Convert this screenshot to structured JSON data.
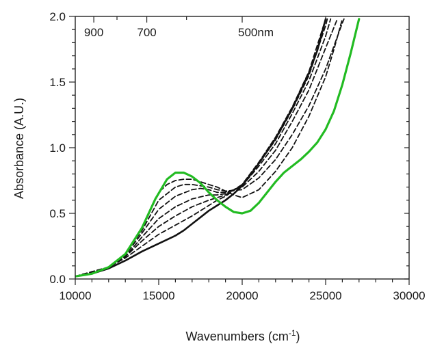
{
  "chart_data": {
    "type": "line",
    "title": "",
    "xlabel": "Wavenumbers (cm",
    "xlabel_sup": "-1",
    "xlabel_end": ")",
    "ylabel": "Absorbance (A.U.)",
    "xlim": [
      10000,
      30000
    ],
    "ylim": [
      0.0,
      2.0
    ],
    "x_ticks": [
      10000,
      15000,
      20000,
      25000,
      30000
    ],
    "x_tick_labels": [
      "10000",
      "15000",
      "20000",
      "25000",
      "30000"
    ],
    "y_ticks": [
      0.0,
      0.5,
      1.0,
      1.5,
      2.0
    ],
    "y_tick_labels": [
      "0.0",
      "0.5",
      "1.0",
      "1.5",
      "2.0"
    ],
    "top_wavelength_labels": [
      {
        "text": "900",
        "x": 11111
      },
      {
        "text": "700",
        "x": 14286
      },
      {
        "text": "500nm",
        "x": 20000
      }
    ],
    "grid": false,
    "colors": {
      "green": "#22bb22",
      "black": "#111111",
      "dashed": "#111111"
    },
    "series": [
      {
        "style": "solid",
        "color": "#111111",
        "points": [
          [
            10000,
            0.02
          ],
          [
            11000,
            0.04
          ],
          [
            12000,
            0.08
          ],
          [
            13000,
            0.14
          ],
          [
            14000,
            0.21
          ],
          [
            15000,
            0.27
          ],
          [
            16000,
            0.33
          ],
          [
            16500,
            0.37
          ],
          [
            17000,
            0.42
          ],
          [
            17500,
            0.47
          ],
          [
            18000,
            0.52
          ],
          [
            18500,
            0.56
          ],
          [
            19000,
            0.6
          ],
          [
            19500,
            0.65
          ],
          [
            20000,
            0.71
          ],
          [
            21000,
            0.88
          ],
          [
            22000,
            1.07
          ],
          [
            23000,
            1.3
          ],
          [
            24000,
            1.57
          ],
          [
            24500,
            1.74
          ],
          [
            25000,
            1.98
          ]
        ]
      },
      {
        "style": "solid",
        "color": "#22bb22",
        "points": [
          [
            10000,
            0.02
          ],
          [
            11000,
            0.04
          ],
          [
            12000,
            0.09
          ],
          [
            13000,
            0.19
          ],
          [
            14000,
            0.39
          ],
          [
            14800,
            0.61
          ],
          [
            15500,
            0.76
          ],
          [
            16000,
            0.81
          ],
          [
            16500,
            0.81
          ],
          [
            17000,
            0.78
          ],
          [
            17500,
            0.73
          ],
          [
            18000,
            0.66
          ],
          [
            18500,
            0.6
          ],
          [
            19000,
            0.55
          ],
          [
            19500,
            0.51
          ],
          [
            20000,
            0.5
          ],
          [
            20500,
            0.52
          ],
          [
            21000,
            0.58
          ],
          [
            21500,
            0.66
          ],
          [
            22000,
            0.74
          ],
          [
            22500,
            0.81
          ],
          [
            23000,
            0.86
          ],
          [
            23500,
            0.91
          ],
          [
            24000,
            0.97
          ],
          [
            24500,
            1.04
          ],
          [
            25000,
            1.14
          ],
          [
            25500,
            1.28
          ],
          [
            26000,
            1.48
          ],
          [
            26500,
            1.72
          ],
          [
            27000,
            1.98
          ]
        ]
      },
      {
        "style": "dashed",
        "color": "#111111",
        "points": [
          [
            10000,
            0.02
          ],
          [
            12000,
            0.09
          ],
          [
            13000,
            0.16
          ],
          [
            14000,
            0.25
          ],
          [
            15000,
            0.34
          ],
          [
            16000,
            0.41
          ],
          [
            17000,
            0.48
          ],
          [
            18000,
            0.56
          ],
          [
            18500,
            0.6
          ],
          [
            19000,
            0.63
          ],
          [
            20000,
            0.72
          ],
          [
            21000,
            0.89
          ],
          [
            22000,
            1.08
          ],
          [
            23000,
            1.31
          ],
          [
            24000,
            1.58
          ],
          [
            25000,
            1.98
          ]
        ]
      },
      {
        "style": "dashed",
        "color": "#111111",
        "points": [
          [
            10000,
            0.02
          ],
          [
            12000,
            0.09
          ],
          [
            13000,
            0.17
          ],
          [
            14000,
            0.29
          ],
          [
            15000,
            0.4
          ],
          [
            16000,
            0.48
          ],
          [
            17000,
            0.55
          ],
          [
            18000,
            0.6
          ],
          [
            18500,
            0.62
          ],
          [
            19000,
            0.64
          ],
          [
            20000,
            0.72
          ],
          [
            21000,
            0.88
          ],
          [
            22000,
            1.06
          ],
          [
            23000,
            1.29
          ],
          [
            24000,
            1.55
          ],
          [
            25000,
            1.93
          ],
          [
            25100,
            1.98
          ]
        ]
      },
      {
        "style": "dashed",
        "color": "#111111",
        "points": [
          [
            10000,
            0.02
          ],
          [
            12000,
            0.09
          ],
          [
            13000,
            0.17
          ],
          [
            14000,
            0.32
          ],
          [
            15000,
            0.46
          ],
          [
            16000,
            0.55
          ],
          [
            17000,
            0.61
          ],
          [
            18000,
            0.64
          ],
          [
            18500,
            0.64
          ],
          [
            19000,
            0.65
          ],
          [
            20000,
            0.71
          ],
          [
            21000,
            0.86
          ],
          [
            22000,
            1.03
          ],
          [
            23000,
            1.26
          ],
          [
            24000,
            1.51
          ],
          [
            25000,
            1.85
          ],
          [
            25300,
            1.98
          ]
        ]
      },
      {
        "style": "dashed",
        "color": "#111111",
        "points": [
          [
            10000,
            0.02
          ],
          [
            12000,
            0.09
          ],
          [
            13000,
            0.18
          ],
          [
            14000,
            0.35
          ],
          [
            15000,
            0.53
          ],
          [
            16000,
            0.63
          ],
          [
            17000,
            0.68
          ],
          [
            17500,
            0.69
          ],
          [
            18000,
            0.68
          ],
          [
            18500,
            0.66
          ],
          [
            19000,
            0.66
          ],
          [
            20000,
            0.7
          ],
          [
            21000,
            0.82
          ],
          [
            22000,
            0.98
          ],
          [
            23000,
            1.2
          ],
          [
            24000,
            1.44
          ],
          [
            25000,
            1.76
          ],
          [
            25700,
            1.98
          ]
        ]
      },
      {
        "style": "dashed",
        "color": "#111111",
        "points": [
          [
            10000,
            0.02
          ],
          [
            12000,
            0.09
          ],
          [
            13000,
            0.19
          ],
          [
            14000,
            0.37
          ],
          [
            15000,
            0.6
          ],
          [
            16000,
            0.7
          ],
          [
            16500,
            0.72
          ],
          [
            17000,
            0.72
          ],
          [
            17500,
            0.71
          ],
          [
            18000,
            0.7
          ],
          [
            18500,
            0.68
          ],
          [
            19000,
            0.67
          ],
          [
            20000,
            0.68
          ],
          [
            21000,
            0.77
          ],
          [
            22000,
            0.91
          ],
          [
            23000,
            1.1
          ],
          [
            24000,
            1.32
          ],
          [
            25000,
            1.6
          ],
          [
            26000,
            1.95
          ],
          [
            26100,
            1.98
          ]
        ]
      },
      {
        "style": "dashed",
        "color": "#111111",
        "points": [
          [
            10000,
            0.02
          ],
          [
            12000,
            0.09
          ],
          [
            13000,
            0.19
          ],
          [
            14000,
            0.38
          ],
          [
            15000,
            0.66
          ],
          [
            15500,
            0.72
          ],
          [
            16000,
            0.75
          ],
          [
            16500,
            0.76
          ],
          [
            17000,
            0.76
          ],
          [
            17500,
            0.74
          ],
          [
            18000,
            0.72
          ],
          [
            18500,
            0.7
          ],
          [
            19000,
            0.67
          ],
          [
            19500,
            0.64
          ],
          [
            20000,
            0.62
          ],
          [
            21000,
            0.68
          ],
          [
            22000,
            0.82
          ],
          [
            23000,
            1.0
          ],
          [
            24000,
            1.24
          ],
          [
            25000,
            1.54
          ],
          [
            25500,
            1.75
          ],
          [
            26000,
            1.98
          ]
        ]
      }
    ]
  }
}
